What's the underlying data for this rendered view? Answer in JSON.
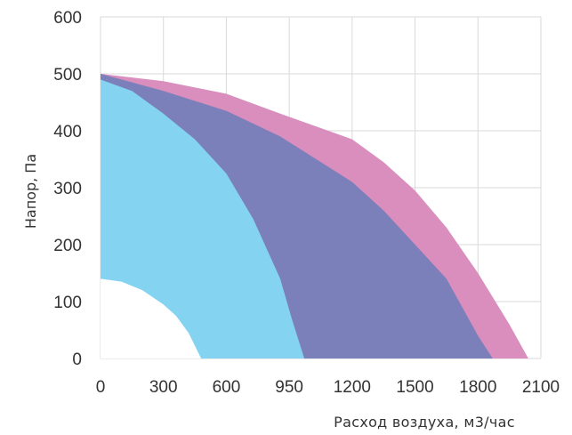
{
  "chart_data": {
    "type": "area",
    "title": "",
    "xlabel": "Расход воздуха, м3/час",
    "ylabel": "Напор, Па",
    "grid": true,
    "x_tick_labels": [
      "0",
      "300",
      "600",
      "950",
      "1200",
      "1500",
      "1800",
      "2100"
    ],
    "y_tick_labels": [
      "0",
      "100",
      "200",
      "300",
      "400",
      "500",
      "600"
    ],
    "ylim": [
      0,
      600
    ],
    "colors": {
      "outer_band": "#d98ebd",
      "middle_band": "#7b7fba",
      "inner_band": "#83d3f1",
      "grid": "#d9d9d9"
    },
    "series": [
      {
        "x": [
          0,
          300,
          600,
          900,
          1200,
          1350,
          1500,
          1650,
          1800,
          1950,
          2040
        ],
        "y": [
          500,
          487,
          465,
          430,
          385,
          345,
          295,
          230,
          150,
          60,
          0
        ]
      },
      {
        "x": [
          0,
          300,
          600,
          900,
          1200,
          1350,
          1500,
          1650,
          1800,
          1870
        ],
        "y": [
          500,
          470,
          435,
          390,
          310,
          260,
          200,
          140,
          40,
          0
        ]
      },
      {
        "x": [
          0,
          150,
          300,
          450,
          600,
          750,
          900,
          960,
          1010
        ],
        "y": [
          490,
          470,
          430,
          385,
          325,
          245,
          140,
          70,
          0
        ]
      },
      {
        "x": [
          0,
          100,
          200,
          300,
          360,
          420,
          480
        ],
        "y": [
          140,
          135,
          120,
          95,
          75,
          45,
          0
        ]
      }
    ]
  }
}
